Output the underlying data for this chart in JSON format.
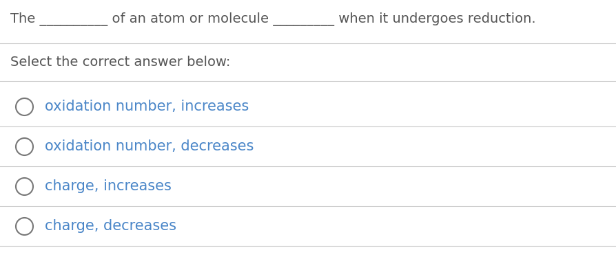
{
  "background_color": "#ffffff",
  "text_color": "#555555",
  "option_text_color": "#4a86c8",
  "title_text_parts": [
    "The ",
    "__________",
    " of an atom or molecule ",
    "_________",
    " when it undergoes reduction."
  ],
  "subtitle_text": "Select the correct answer below:",
  "options": [
    "oxidation number, increases",
    "oxidation number, decreases",
    "charge, increases",
    "charge, decreases"
  ],
  "font_size_title": 14,
  "font_size_subtitle": 14,
  "font_size_options": 15,
  "line_color": "#cccccc",
  "circle_edge_color": "#777777",
  "fig_width": 8.95,
  "fig_height": 3.93,
  "dpi": 100
}
